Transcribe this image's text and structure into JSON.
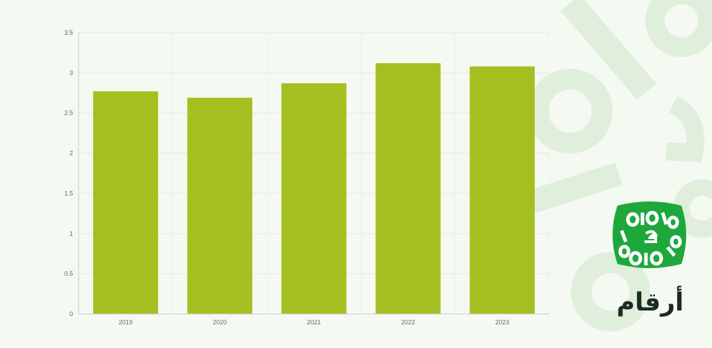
{
  "brand": {
    "name": "أرقام",
    "green": "#1ea83c",
    "watermark_color": "#e0efdc"
  },
  "chart_data": {
    "type": "bar",
    "categories": [
      "2019",
      "2020",
      "2021",
      "2022",
      "2023"
    ],
    "values": [
      2.77,
      2.69,
      2.87,
      3.12,
      3.08
    ],
    "ylim": [
      0,
      3.5
    ],
    "yticks": [
      "0",
      "0.5",
      "1",
      "1.5",
      "2",
      "2.5",
      "3",
      "3.5"
    ],
    "title": "",
    "xlabel": "",
    "ylabel": "",
    "bar_color": "#a5bf21",
    "grid": true,
    "legend": "none"
  }
}
